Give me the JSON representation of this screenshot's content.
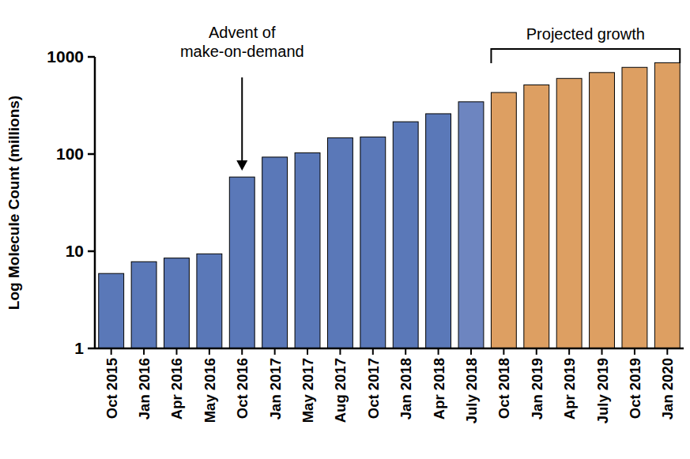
{
  "chart_data": {
    "type": "bar",
    "y_label": "Log Molecule Count (millions)",
    "categories": [
      "Oct 2015",
      "Jan 2016",
      "Apr 2016",
      "May 2016",
      "Oct 2016",
      "Jan 2017",
      "May 2017",
      "Aug 2017",
      "Oct 2017",
      "Jan 2018",
      "Apr 2018",
      "July 2018",
      "Oct 2018",
      "Jan 2019",
      "Apr 2019",
      "July 2019",
      "Oct 2019",
      "Jan 2020"
    ],
    "values": [
      5.9,
      7.8,
      8.5,
      9.4,
      58,
      93,
      103,
      147,
      150,
      215,
      260,
      345,
      430,
      515,
      600,
      690,
      780,
      870
    ],
    "colors": [
      "#5a78b8",
      "#5a78b8",
      "#5a78b8",
      "#5a78b8",
      "#5a78b8",
      "#5a78b8",
      "#5a78b8",
      "#5a78b8",
      "#5a78b8",
      "#5a78b8",
      "#5a78b8",
      "#6d85c0",
      "#dd9f62",
      "#dd9f62",
      "#dd9f62",
      "#dd9f62",
      "#dd9f62",
      "#dd9f62"
    ],
    "log": "y",
    "ylim": [
      1,
      1000
    ],
    "yticks": [
      1,
      10,
      100,
      1000
    ],
    "annotations": [
      {
        "text": [
          "Advent of",
          "make-on-demand"
        ],
        "category": "Oct 2016"
      },
      {
        "text": [
          "Projected growth"
        ],
        "from": "Oct 2018",
        "to": "Jan 2020"
      }
    ]
  }
}
